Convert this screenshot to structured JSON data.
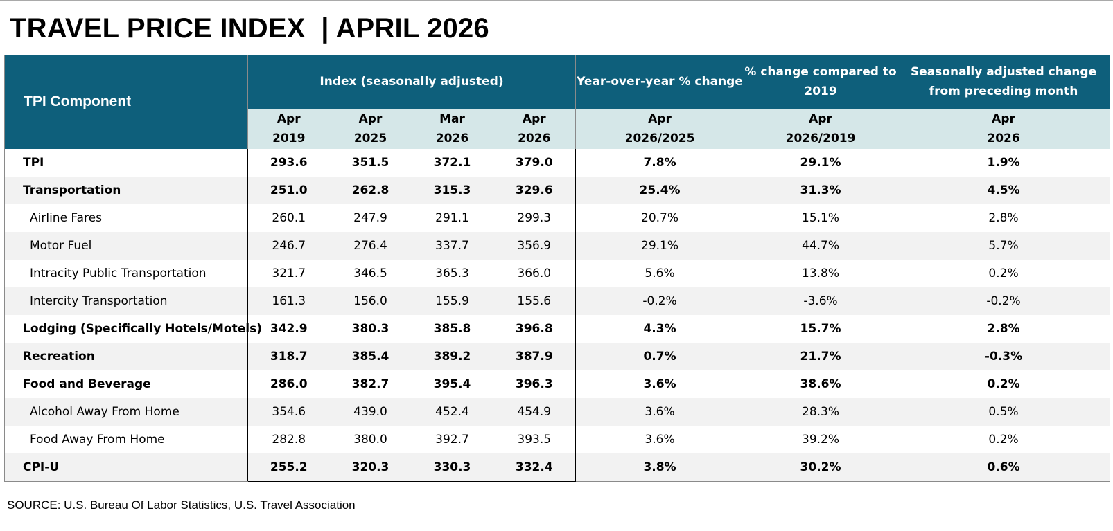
{
  "title": "TRAVEL PRICE INDEX  | APRIL 2026",
  "header": {
    "component": "TPI Component",
    "index": "Index  (seasonally adjusted)",
    "yoy": "Year-over-year % change",
    "vs2019": "% change compared to 2019",
    "mom": "Seasonally adjusted change from preceding month"
  },
  "subheader": {
    "c1_top": "Apr",
    "c1_bot": "2019",
    "c2_top": "Apr",
    "c2_bot": "2025",
    "c3_top": "Mar",
    "c3_bot": "2026",
    "c4_top": "Apr",
    "c4_bot": "2026",
    "c5_top": "Apr",
    "c5_bot": "2026/2025",
    "c6_top": "Apr",
    "c6_bot": "2026/2019",
    "c7_top": "Apr",
    "c7_bot": "2026"
  },
  "rows": [
    {
      "name": "TPI",
      "apr2019": "293.6",
      "apr2025": "351.5",
      "mar2026": "372.1",
      "apr2026": "379.0",
      "yoy": "7.8%",
      "vs2019": "29.1%",
      "mom": "1.9%"
    },
    {
      "name": "Transportation",
      "apr2019": "251.0",
      "apr2025": "262.8",
      "mar2026": "315.3",
      "apr2026": "329.6",
      "yoy": "25.4%",
      "vs2019": "31.3%",
      "mom": "4.5%"
    },
    {
      "name": "Airline Fares",
      "apr2019": "260.1",
      "apr2025": "247.9",
      "mar2026": "291.1",
      "apr2026": "299.3",
      "yoy": "20.7%",
      "vs2019": "15.1%",
      "mom": "2.8%"
    },
    {
      "name": "Motor Fuel",
      "apr2019": "246.7",
      "apr2025": "276.4",
      "mar2026": "337.7",
      "apr2026": "356.9",
      "yoy": "29.1%",
      "vs2019": "44.7%",
      "mom": "5.7%"
    },
    {
      "name": "Intracity Public Transportation",
      "apr2019": "321.7",
      "apr2025": "346.5",
      "mar2026": "365.3",
      "apr2026": "366.0",
      "yoy": "5.6%",
      "vs2019": "13.8%",
      "mom": "0.2%"
    },
    {
      "name": "Intercity Transportation",
      "apr2019": "161.3",
      "apr2025": "156.0",
      "mar2026": "155.9",
      "apr2026": "155.6",
      "yoy": "-0.2%",
      "vs2019": "-3.6%",
      "mom": "-0.2%"
    },
    {
      "name": "Lodging (Specifically Hotels/Motels)",
      "apr2019": "342.9",
      "apr2025": "380.3",
      "mar2026": "385.8",
      "apr2026": "396.8",
      "yoy": "4.3%",
      "vs2019": "15.7%",
      "mom": "2.8%"
    },
    {
      "name": "Recreation",
      "apr2019": "318.7",
      "apr2025": "385.4",
      "mar2026": "389.2",
      "apr2026": "387.9",
      "yoy": "0.7%",
      "vs2019": "21.7%",
      "mom": "-0.3%"
    },
    {
      "name": "Food and Beverage",
      "apr2019": "286.0",
      "apr2025": "382.7",
      "mar2026": "395.4",
      "apr2026": "396.3",
      "yoy": "3.6%",
      "vs2019": "38.6%",
      "mom": "0.2%"
    },
    {
      "name": "Alcohol Away From Home",
      "apr2019": "354.6",
      "apr2025": "439.0",
      "mar2026": "452.4",
      "apr2026": "454.9",
      "yoy": "3.6%",
      "vs2019": "28.3%",
      "mom": "0.5%"
    },
    {
      "name": "Food Away From Home",
      "apr2019": "282.8",
      "apr2025": "380.0",
      "mar2026": "392.7",
      "apr2026": "393.5",
      "yoy": "3.6%",
      "vs2019": "39.2%",
      "mom": "0.2%"
    },
    {
      "name": "CPI-U",
      "apr2019": "255.2",
      "apr2025": "320.3",
      "mar2026": "330.3",
      "apr2026": "332.4",
      "yoy": "3.8%",
      "vs2019": "30.2%",
      "mom": "0.6%"
    }
  ],
  "source": "SOURCE: U.S. Bureau Of Labor Statistics, U.S. Travel Association",
  "colors": {
    "header_bg": "#0e5f7b",
    "subheader_bg": "#d5e7e8",
    "alt_row_bg": "#f2f2f2"
  }
}
